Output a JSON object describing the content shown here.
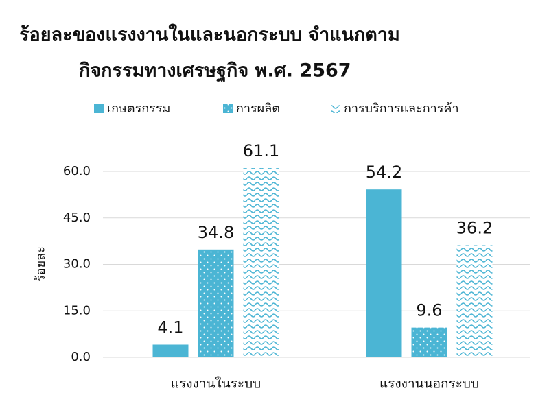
{
  "chart_data": {
    "type": "bar",
    "title": [
      "ร้อยละของแรงงานในและนอกระบบ จำแนกตาม",
      "กิจกรรมทางเศรษฐกิจ พ.ศ. 2567"
    ],
    "ylabel": "ร้อยละ",
    "categories": [
      "แรงงานในระบบ",
      "แรงงานนอกระบบ"
    ],
    "series": [
      {
        "name": "เกษตรกรรม",
        "color": "#4bb5d4",
        "pattern": "solid",
        "values": [
          4.1,
          54.2
        ]
      },
      {
        "name": "การผลิต",
        "color": "#4bb5d4",
        "pattern": "dots",
        "values": [
          34.8,
          9.6
        ]
      },
      {
        "name": "การบริการและการค้า",
        "color": "#4bb5d4",
        "pattern": "waves",
        "values": [
          61.1,
          36.2
        ]
      }
    ],
    "ylim": [
      0,
      60
    ],
    "yticks": [
      {
        "value": 0,
        "label": "0.0"
      },
      {
        "value": 15,
        "label": "15.0"
      },
      {
        "value": 30,
        "label": "30.0"
      },
      {
        "value": 45,
        "label": "45.0"
      },
      {
        "value": 60,
        "label": "60.0"
      }
    ],
    "grid": true,
    "legend": "top"
  }
}
